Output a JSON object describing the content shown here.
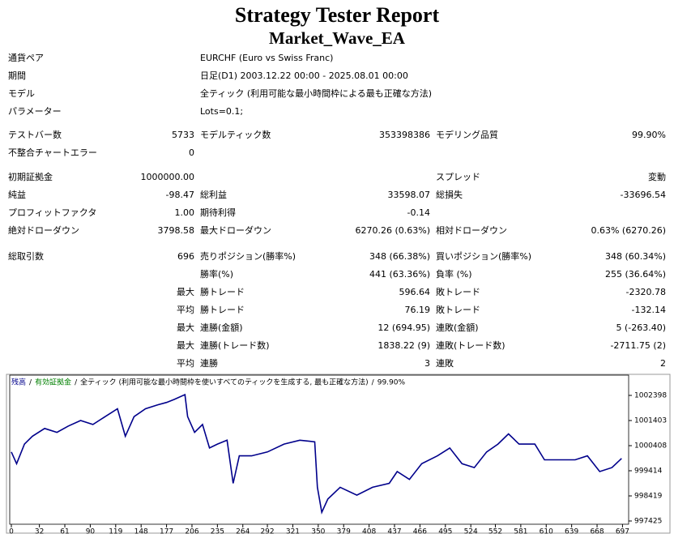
{
  "header": {
    "title": "Strategy Tester Report",
    "subtitle": "Market_Wave_EA"
  },
  "info": [
    [
      "通貨ペア",
      "EURCHF (Euro vs Swiss Franc)"
    ],
    [
      "期間",
      "日足(D1) 2003.12.22 00:00 - 2025.08.01 00:00"
    ],
    [
      "モデル",
      "全ティック (利用可能な最小時間枠による最も正確な方法)"
    ],
    [
      "パラメーター",
      "Lots=0.1;"
    ]
  ],
  "sections": [
    [
      [
        "テストバー数",
        "5733",
        "モデルティック数",
        "353398386",
        "モデリング品質",
        "99.90%"
      ],
      [
        "不整合チャートエラー",
        "0"
      ]
    ],
    [
      [
        "初期証拠金",
        "1000000.00",
        null,
        null,
        "スプレッド",
        "変動"
      ],
      [
        "純益",
        "-98.47",
        "総利益",
        "33598.07",
        "総損失",
        "-33696.54"
      ],
      [
        "プロフィットファクタ",
        "1.00",
        "期待利得",
        "-0.14"
      ],
      [
        "絶対ドローダウン",
        "3798.58",
        "最大ドローダウン",
        "6270.26 (0.63%)",
        "相対ドローダウン",
        "0.63% (6270.26)"
      ]
    ],
    [
      [
        "総取引数",
        "696",
        "売りポジション(勝率%)",
        "348 (66.38%)",
        "買いポジション(勝率%)",
        "348 (60.34%)"
      ],
      [
        null,
        null,
        "勝率(%)",
        "441 (63.36%)",
        "負率 (%)",
        "255 (36.64%)"
      ],
      [
        null,
        "最大",
        "勝トレード",
        "596.64",
        "敗トレード",
        "-2320.78"
      ],
      [
        null,
        "平均",
        "勝トレード",
        "76.19",
        "敗トレード",
        "-132.14"
      ],
      [
        null,
        "最大",
        "連勝(金額)",
        "12 (694.95)",
        "連敗(金額)",
        "5 (-263.40)"
      ],
      [
        null,
        "最大",
        "連勝(トレード数)",
        "1838.22 (9)",
        "連敗(トレード数)",
        "-2711.75 (2)"
      ],
      [
        null,
        "平均",
        "連勝",
        "3",
        "連敗",
        "2"
      ]
    ]
  ],
  "chart_data": {
    "type": "line",
    "legend_extra": [
      {
        "text": "有効証拠金",
        "color": "#008000"
      },
      {
        "text": "全ティック (利用可能な最小時間枠を使いすべてのティックを生成する, 最も正確な方法)",
        "color": "#000000"
      },
      {
        "text": "99.90%",
        "color": "#000000"
      }
    ],
    "legend_separator": "/",
    "x": [
      0,
      6,
      15,
      24,
      38,
      52,
      65,
      79,
      93,
      107,
      121,
      130,
      140,
      153,
      167,
      177,
      186,
      198,
      201,
      209,
      218,
      226,
      235,
      246,
      253,
      260,
      274,
      292,
      311,
      329,
      346,
      349,
      354,
      361,
      375,
      394,
      412,
      431,
      440,
      454,
      468,
      486,
      500,
      514,
      528,
      542,
      555,
      567,
      579,
      597,
      608,
      625,
      643,
      657,
      671,
      685,
      696
    ],
    "series": [
      {
        "name": "残高",
        "color": "#00008b",
        "values": [
          1000160,
          999694,
          1000470,
          1000780,
          1001090,
          1000935,
          1001186,
          1001403,
          1001248,
          1001559,
          1001870,
          1000780,
          1001559,
          1001870,
          1002025,
          1002120,
          1002240,
          1002430,
          1001559,
          1000935,
          1001248,
          1000315,
          1000470,
          1000625,
          998917,
          1000005,
          1000005,
          1000160,
          1000470,
          1000625,
          1000560,
          998760,
          997767,
          998295,
          998760,
          998450,
          998760,
          998917,
          999383,
          999072,
          999694,
          1000005,
          1000315,
          999694,
          999539,
          1000160,
          1000470,
          1000873,
          1000470,
          1000470,
          999849,
          999849,
          999849,
          1000005,
          999383,
          999539,
          999902
        ]
      }
    ],
    "xlim": [
      0,
      704
    ],
    "xticks": [
      0,
      32,
      61,
      90,
      119,
      148,
      177,
      206,
      235,
      264,
      292,
      321,
      350,
      379,
      408,
      437,
      466,
      495,
      524,
      552,
      581,
      610,
      639,
      668,
      697
    ],
    "ylim": [
      997425,
      1003040
    ],
    "yticks": [
      997425,
      998419,
      999414,
      1000408,
      1001403,
      1002398
    ]
  }
}
